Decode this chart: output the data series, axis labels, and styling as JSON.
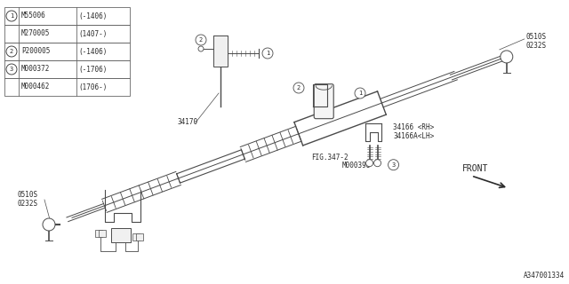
{
  "bg_color": "#ffffff",
  "fig_width": 6.4,
  "fig_height": 3.2,
  "dpi": 100,
  "diagram_id": "A347001334",
  "fig_ref": "FIG.347-2",
  "front_label": "FRONT",
  "parts_table": [
    {
      "circle": "1",
      "part": "M55006",
      "note": "(-1406)"
    },
    {
      "circle": "",
      "part": "M270005",
      "note": "(1407-)"
    },
    {
      "circle": "2",
      "part": "P200005",
      "note": "(-1406)"
    },
    {
      "circle": "3",
      "part": "M000372",
      "note": "(-1706)"
    },
    {
      "circle": "",
      "part": "M000462",
      "note": "(1706-)"
    }
  ],
  "line_color": "#4a4a4a",
  "text_color": "#2a2a2a",
  "table_line_color": "#666666"
}
